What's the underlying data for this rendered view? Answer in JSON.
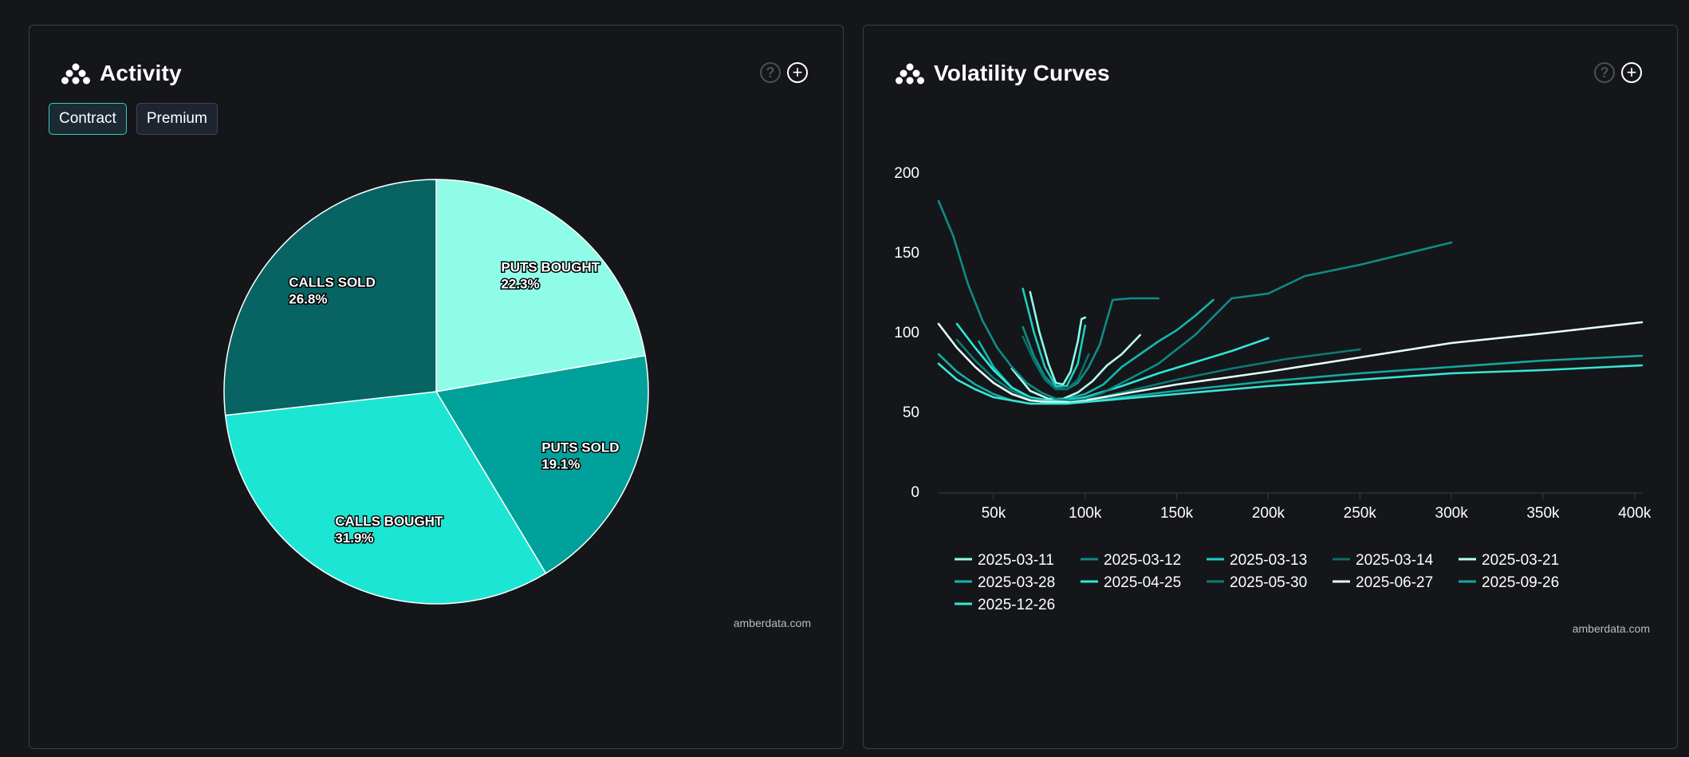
{
  "activity_panel": {
    "title": "Activity",
    "brand_icon": "amberdata-logo-icon",
    "help_label": "?",
    "add_label": "+",
    "toggles": [
      {
        "label": "Contract",
        "active": true
      },
      {
        "label": "Premium",
        "active": false
      }
    ],
    "credit": "amberdata.com"
  },
  "vol_panel": {
    "title": "Volatility Curves",
    "brand_icon": "amberdata-logo-icon",
    "help_label": "?",
    "add_label": "+",
    "credit": "amberdata.com"
  },
  "chart_data": [
    {
      "type": "pie",
      "title": "Activity",
      "start_angle_deg": 0,
      "slices": [
        {
          "name": "PUTS BOUGHT",
          "value": 22.3,
          "label": "22.3%",
          "color": "#8ffce8"
        },
        {
          "name": "PUTS SOLD",
          "value": 19.1,
          "label": "19.1%",
          "color": "#00a19a"
        },
        {
          "name": "CALLS BOUGHT",
          "value": 31.9,
          "label": "31.9%",
          "color": "#1ce6d3"
        },
        {
          "name": "CALLS SOLD",
          "value": 26.8,
          "label": "26.8%",
          "color": "#076463"
        }
      ]
    },
    {
      "type": "line",
      "title": "Volatility Curves",
      "xlabel": "",
      "ylabel": "",
      "xlim": [
        20000,
        404000
      ],
      "ylim": [
        0,
        200
      ],
      "x_ticks": [
        50000,
        100000,
        150000,
        200000,
        250000,
        300000,
        350000,
        400000
      ],
      "x_tick_labels": [
        "50k",
        "100k",
        "150k",
        "200k",
        "250k",
        "300k",
        "350k",
        "400k"
      ],
      "y_ticks": [
        0,
        50,
        100,
        150,
        200
      ],
      "y_tick_labels": [
        "0",
        "50",
        "100",
        "150",
        "200"
      ],
      "series": [
        {
          "name": "2025-03-11",
          "color": "#8ffce8",
          "x": [
            70000,
            75000,
            80000,
            84000,
            88000,
            92000,
            96000,
            98000,
            100000
          ],
          "y": [
            125,
            100,
            80,
            68,
            67,
            75,
            94,
            108,
            109
          ]
        },
        {
          "name": "2025-03-12",
          "color": "#0e8c87",
          "x": [
            66000,
            72000,
            78000,
            84000,
            90000,
            96000,
            102000,
            108000,
            115000,
            125000,
            140000
          ],
          "y": [
            103,
            85,
            72,
            65,
            64,
            68,
            78,
            92,
            120,
            121,
            121
          ]
        },
        {
          "name": "2025-03-13",
          "color": "#1ccdc0",
          "x": [
            66000,
            72000,
            78000,
            84000,
            90000,
            96000,
            100000
          ],
          "y": [
            127,
            100,
            78,
            66,
            66,
            80,
            104
          ]
        },
        {
          "name": "2025-03-14",
          "color": "#0a6f6c",
          "x": [
            66000,
            72000,
            78000,
            84000,
            90000,
            96000,
            102000
          ],
          "y": [
            97,
            82,
            70,
            64,
            64,
            70,
            86
          ]
        },
        {
          "name": "2025-03-21",
          "color": "#b8fff2",
          "x": [
            60000,
            70000,
            80000,
            88000,
            96000,
            104000,
            112000,
            120000,
            130000
          ],
          "y": [
            77,
            63,
            58,
            58,
            62,
            69,
            79,
            86,
            98
          ]
        },
        {
          "name": "2025-03-28",
          "color": "#12b8ae",
          "x": [
            42000,
            50000,
            60000,
            70000,
            80000,
            90000,
            100000,
            110000,
            120000,
            130000,
            140000,
            150000,
            160000,
            170000
          ],
          "y": [
            94,
            78,
            65,
            59,
            57,
            58,
            61,
            67,
            78,
            86,
            94,
            101,
            110,
            120
          ]
        },
        {
          "name": "2025-04-25",
          "color": "#2ee8d8",
          "x": [
            30000,
            40000,
            50000,
            60000,
            70000,
            80000,
            90000,
            100000,
            120000,
            140000,
            160000,
            180000,
            200000
          ],
          "y": [
            105,
            90,
            76,
            65,
            59,
            57,
            57,
            59,
            66,
            74,
            81,
            88,
            96
          ]
        },
        {
          "name": "2025-05-30",
          "color": "#0d7a76",
          "x": [
            30000,
            40000,
            50000,
            60000,
            70000,
            80000,
            90000,
            100000,
            120000,
            150000,
            180000,
            210000,
            250000
          ],
          "y": [
            95,
            82,
            71,
            63,
            58,
            56,
            56,
            57,
            62,
            70,
            77,
            83,
            89
          ]
        },
        {
          "name": "2025-06-27",
          "color": "#e6fffa",
          "x": [
            20000,
            30000,
            40000,
            50000,
            60000,
            70000,
            80000,
            90000,
            100000,
            120000,
            150000,
            200000,
            250000,
            300000,
            350000,
            404000
          ],
          "y": [
            105,
            90,
            78,
            68,
            61,
            57,
            56,
            56,
            57,
            61,
            67,
            75,
            84,
            93,
            99,
            106
          ]
        },
        {
          "name": "2025-09-26",
          "color": "#16a8a0",
          "x": [
            20000,
            30000,
            40000,
            50000,
            60000,
            70000,
            80000,
            90000,
            100000,
            120000,
            150000,
            200000,
            250000,
            300000,
            350000,
            404000
          ],
          "y": [
            86,
            75,
            67,
            61,
            57,
            55,
            55,
            55,
            56,
            59,
            63,
            69,
            74,
            78,
            82,
            85
          ]
        },
        {
          "name": "2025-12-26",
          "color": "#38e6d6",
          "x": [
            20000,
            30000,
            40000,
            50000,
            60000,
            70000,
            80000,
            90000,
            100000,
            120000,
            150000,
            200000,
            250000,
            300000,
            350000,
            404000
          ],
          "y": [
            80,
            70,
            64,
            59,
            57,
            55,
            55,
            55,
            56,
            58,
            61,
            66,
            70,
            74,
            76,
            79
          ]
        },
        {
          "name": "2025-03-12",
          "color": "#0e8c87",
          "x": [
            20000,
            28000,
            36000,
            44000,
            52000,
            60000,
            68000,
            76000,
            84000,
            92000,
            100000,
            110000,
            120000,
            140000,
            160000,
            180000,
            200000,
            220000,
            250000,
            300000
          ],
          "y": [
            182,
            160,
            130,
            107,
            90,
            78,
            68,
            62,
            58,
            57,
            58,
            62,
            68,
            80,
            98,
            121,
            124,
            135,
            142,
            156
          ],
          "legend": false
        }
      ]
    }
  ]
}
